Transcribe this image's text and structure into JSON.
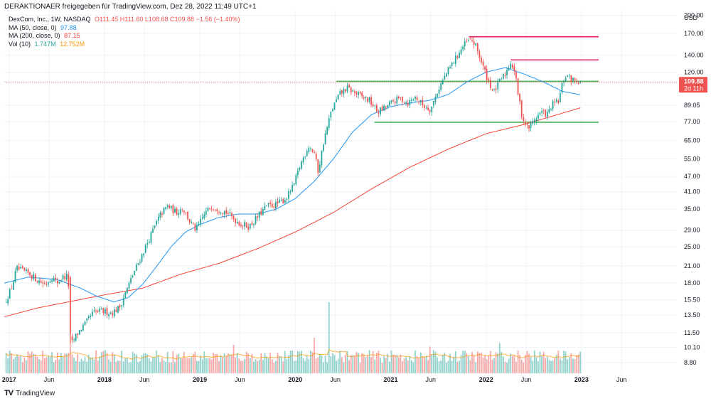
{
  "header": {
    "shared_by": "DERAKTIONAER freigegeben für TradingView.com, Dez 28, 2022 11:49 UTC+1"
  },
  "legend": {
    "symbol": "DexCom, Inc., 1W, NASDAQ",
    "ohlc": "O111.45 H111.60 L108.68 C109.88 −1.56 (−1.40%)",
    "ma50_label": "MA (50, close, 0)",
    "ma50_value": "97.88",
    "ma200_label": "MA (200, close, 0)",
    "ma200_value": "87.15",
    "vol_label": "Vol (10)",
    "vol_value1": "1.747M",
    "vol_value2": "12.752M"
  },
  "brand": {
    "name": "TradingView"
  },
  "colors": {
    "up": "#26a69a",
    "down": "#ef5350",
    "ma50": "#2196f3",
    "ma200": "#f44336",
    "vol_ma": "#ff9800",
    "level_red": "#e91e63",
    "level_green": "#4caf50",
    "price_tag": "#ef5350"
  },
  "chart_data": {
    "type": "candlestick",
    "interval": "1W",
    "currency": "USD",
    "scale": "log",
    "ylim": [
      8.0,
      210.0
    ],
    "y_ticks": [
      200.0,
      170.0,
      140.0,
      120.0,
      110.0,
      89.05,
      77.0,
      65.0,
      55.0,
      47.0,
      41.0,
      35.0,
      29.0,
      25.0,
      21.0,
      18.0,
      15.5,
      13.5,
      11.5,
      10.1,
      8.8
    ],
    "y_tick_labels": [
      "200.00",
      "170.00",
      "140.00",
      "120.00",
      "110.00",
      "89.05",
      "77.00",
      "65.00",
      "55.00",
      "47.00",
      "41.00",
      "35.00",
      "29.00",
      "25.00",
      "21.00",
      "18.00",
      "15.50",
      "13.50",
      "11.50",
      "10.10",
      "8.80"
    ],
    "y_axis_unit": "USD",
    "x_ticks": [
      {
        "label": "2017",
        "t": 2017.0
      },
      {
        "label": "Jun",
        "t": 2017.42
      },
      {
        "label": "2018",
        "t": 2018.0
      },
      {
        "label": "Jun",
        "t": 2018.42
      },
      {
        "label": "2019",
        "t": 2019.0
      },
      {
        "label": "Jun",
        "t": 2019.42
      },
      {
        "label": "2020",
        "t": 2020.0
      },
      {
        "label": "Jun",
        "t": 2020.42
      },
      {
        "label": "2021",
        "t": 2021.0
      },
      {
        "label": "Jun",
        "t": 2021.42
      },
      {
        "label": "2022",
        "t": 2022.0
      },
      {
        "label": "Jun",
        "t": 2022.42
      },
      {
        "label": "2023",
        "t": 2023.0
      },
      {
        "label": "Jun",
        "t": 2023.42
      }
    ],
    "x_range": [
      2016.95,
      2024.0
    ],
    "last_price": {
      "value": 109.88,
      "label": "109.88",
      "countdown": "2d 11h"
    },
    "price_anchors": [
      [
        2016.95,
        15.0
      ],
      [
        2017.02,
        17.0
      ],
      [
        2017.08,
        20.5
      ],
      [
        2017.15,
        20.0
      ],
      [
        2017.22,
        19.5
      ],
      [
        2017.3,
        18.5
      ],
      [
        2017.38,
        17.8
      ],
      [
        2017.45,
        19.0
      ],
      [
        2017.5,
        18.0
      ],
      [
        2017.56,
        19.0
      ],
      [
        2017.62,
        19.2
      ],
      [
        2017.64,
        11.0
      ],
      [
        2017.66,
        10.5
      ],
      [
        2017.72,
        11.5
      ],
      [
        2017.8,
        12.5
      ],
      [
        2017.88,
        13.8
      ],
      [
        2017.96,
        14.0
      ],
      [
        2018.08,
        13.8
      ],
      [
        2018.16,
        14.5
      ],
      [
        2018.22,
        16.5
      ],
      [
        2018.3,
        19.5
      ],
      [
        2018.4,
        23.5
      ],
      [
        2018.5,
        28.5
      ],
      [
        2018.58,
        33.0
      ],
      [
        2018.66,
        36.0
      ],
      [
        2018.75,
        34.0
      ],
      [
        2018.82,
        35.5
      ],
      [
        2018.9,
        31.0
      ],
      [
        2018.96,
        29.0
      ],
      [
        2019.05,
        33.5
      ],
      [
        2019.12,
        36.0
      ],
      [
        2019.2,
        35.0
      ],
      [
        2019.28,
        34.0
      ],
      [
        2019.36,
        32.0
      ],
      [
        2019.44,
        30.5
      ],
      [
        2019.52,
        30.0
      ],
      [
        2019.6,
        32.5
      ],
      [
        2019.7,
        36.0
      ],
      [
        2019.8,
        36.5
      ],
      [
        2019.9,
        38.5
      ],
      [
        2019.98,
        43.0
      ],
      [
        2020.06,
        53.0
      ],
      [
        2020.14,
        62.0
      ],
      [
        2020.2,
        58.0
      ],
      [
        2020.24,
        49.0
      ],
      [
        2020.3,
        65.0
      ],
      [
        2020.38,
        85.0
      ],
      [
        2020.46,
        98.0
      ],
      [
        2020.54,
        104.0
      ],
      [
        2020.62,
        100.0
      ],
      [
        2020.7,
        96.0
      ],
      [
        2020.78,
        93.0
      ],
      [
        2020.86,
        84.0
      ],
      [
        2020.94,
        87.0
      ],
      [
        2021.02,
        92.0
      ],
      [
        2021.1,
        95.0
      ],
      [
        2021.18,
        91.0
      ],
      [
        2021.26,
        96.0
      ],
      [
        2021.34,
        89.0
      ],
      [
        2021.42,
        86.0
      ],
      [
        2021.5,
        103.0
      ],
      [
        2021.58,
        118.0
      ],
      [
        2021.66,
        132.0
      ],
      [
        2021.74,
        148.0
      ],
      [
        2021.8,
        158.0
      ],
      [
        2021.85,
        160.0
      ],
      [
        2021.9,
        150.0
      ],
      [
        2021.96,
        128.0
      ],
      [
        2022.02,
        112.0
      ],
      [
        2022.08,
        100.0
      ],
      [
        2022.14,
        110.0
      ],
      [
        2022.2,
        118.0
      ],
      [
        2022.26,
        132.0
      ],
      [
        2022.3,
        121.0
      ],
      [
        2022.34,
        96.0
      ],
      [
        2022.38,
        80.0
      ],
      [
        2022.44,
        72.0
      ],
      [
        2022.5,
        78.0
      ],
      [
        2022.58,
        84.0
      ],
      [
        2022.64,
        82.0
      ],
      [
        2022.7,
        90.0
      ],
      [
        2022.76,
        92.0
      ],
      [
        2022.8,
        108.0
      ],
      [
        2022.84,
        117.0
      ],
      [
        2022.9,
        112.0
      ],
      [
        2022.96,
        111.5
      ],
      [
        2022.99,
        109.88
      ]
    ],
    "ma50_anchors": [
      [
        2016.95,
        18.0
      ],
      [
        2017.2,
        19.0
      ],
      [
        2017.5,
        18.6
      ],
      [
        2017.75,
        17.2
      ],
      [
        2017.92,
        16.0
      ],
      [
        2018.1,
        15.2
      ],
      [
        2018.25,
        15.8
      ],
      [
        2018.4,
        17.8
      ],
      [
        2018.55,
        21.0
      ],
      [
        2018.7,
        25.0
      ],
      [
        2018.85,
        28.5
      ],
      [
        2019.0,
        30.5
      ],
      [
        2019.2,
        32.5
      ],
      [
        2019.4,
        33.5
      ],
      [
        2019.6,
        33.5
      ],
      [
        2019.8,
        35.0
      ],
      [
        2020.0,
        38.5
      ],
      [
        2020.2,
        45.0
      ],
      [
        2020.4,
        55.0
      ],
      [
        2020.6,
        70.0
      ],
      [
        2020.8,
        82.0
      ],
      [
        2021.0,
        88.0
      ],
      [
        2021.2,
        91.0
      ],
      [
        2021.4,
        93.0
      ],
      [
        2021.6,
        98.0
      ],
      [
        2021.8,
        110.0
      ],
      [
        2022.0,
        120.0
      ],
      [
        2022.2,
        125.0
      ],
      [
        2022.4,
        118.0
      ],
      [
        2022.6,
        110.0
      ],
      [
        2022.8,
        101.0
      ],
      [
        2022.99,
        97.88
      ]
    ],
    "ma200_anchors": [
      [
        2016.95,
        13.3
      ],
      [
        2017.3,
        14.4
      ],
      [
        2017.7,
        15.4
      ],
      [
        2018.0,
        16.2
      ],
      [
        2018.4,
        17.2
      ],
      [
        2018.8,
        19.5
      ],
      [
        2019.2,
        21.5
      ],
      [
        2019.6,
        24.5
      ],
      [
        2020.0,
        28.5
      ],
      [
        2020.4,
        34.0
      ],
      [
        2020.8,
        42.0
      ],
      [
        2021.2,
        51.0
      ],
      [
        2021.6,
        60.0
      ],
      [
        2022.0,
        69.0
      ],
      [
        2022.4,
        75.0
      ],
      [
        2022.8,
        83.0
      ],
      [
        2022.99,
        87.15
      ]
    ],
    "volume_range": [
      0,
      20.0
    ],
    "volume_spikes": [
      {
        "t": 2017.64,
        "v": 12.0
      },
      {
        "t": 2019.36,
        "v": 8.0
      },
      {
        "t": 2020.36,
        "v": 20.0
      },
      {
        "t": 2020.2,
        "v": 10.0
      },
      {
        "t": 2021.42,
        "v": 7.5
      },
      {
        "t": 2022.14,
        "v": 8.5
      }
    ],
    "horizontal_levels": [
      {
        "name": "resistance-170",
        "value": 165.0,
        "t_start": 2021.82,
        "t_end": 2023.18,
        "color": "red"
      },
      {
        "name": "resistance-137",
        "value": 134.0,
        "t_start": 2022.26,
        "t_end": 2023.18,
        "color": "red"
      },
      {
        "name": "support-110",
        "value": 110.5,
        "t_start": 2020.43,
        "t_end": 2023.18,
        "color": "green"
      },
      {
        "name": "support-77",
        "value": 76.5,
        "t_start": 2020.83,
        "t_end": 2023.18,
        "color": "green"
      }
    ]
  }
}
